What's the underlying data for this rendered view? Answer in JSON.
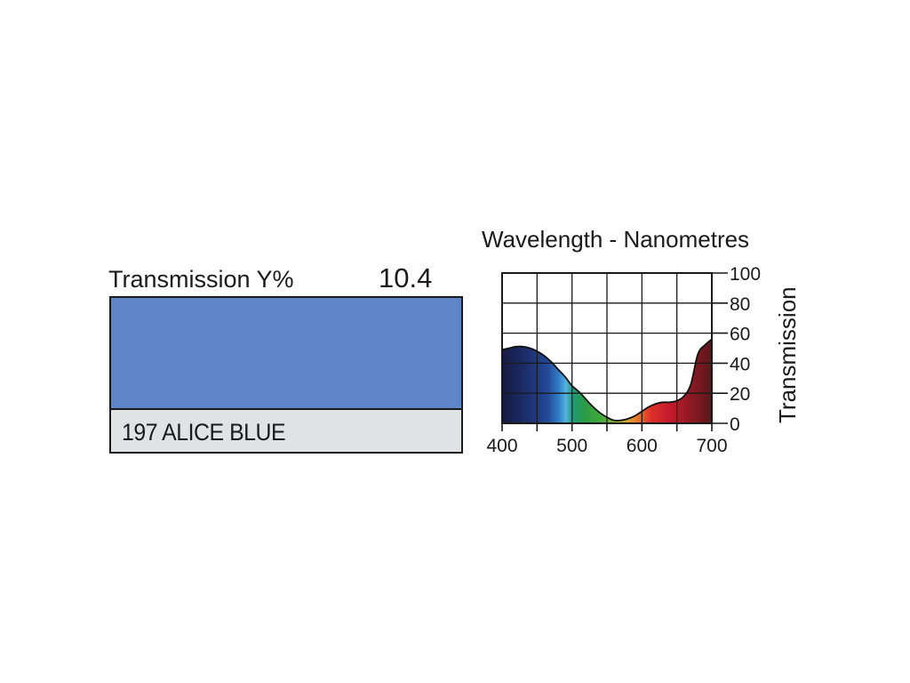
{
  "swatch": {
    "label": "Transmission Y%",
    "value": "10.4",
    "name": "197 ALICE BLUE",
    "color": "#5f85c9"
  },
  "chart_data": {
    "type": "area",
    "title": "",
    "xlabel": "Wavelength - Nanometres",
    "ylabel": "Transmission",
    "xlim": [
      400,
      700
    ],
    "ylim": [
      0,
      100
    ],
    "x_ticks": [
      400,
      500,
      600,
      700
    ],
    "y_ticks": [
      0,
      20,
      40,
      60,
      80,
      100
    ],
    "grid": true,
    "fill": "visible-spectrum gradient",
    "series": [
      {
        "x": [
          400,
          410,
          420,
          430,
          440,
          450,
          460,
          470,
          480,
          490,
          500,
          510,
          520,
          530,
          540,
          550,
          560,
          570,
          580,
          590,
          600,
          610,
          620,
          630,
          640,
          650,
          660,
          670,
          680,
          690,
          700
        ],
        "values": [
          49,
          50,
          51,
          51,
          50,
          48,
          45,
          41,
          36,
          31,
          25,
          21,
          16,
          11,
          7,
          4,
          2,
          2,
          3,
          5,
          8,
          11,
          13,
          14,
          14,
          15,
          18,
          26,
          46,
          52,
          56
        ]
      }
    ]
  }
}
